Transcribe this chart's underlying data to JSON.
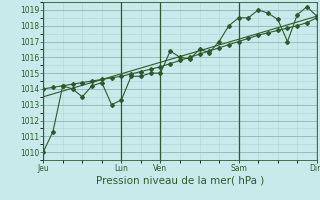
{
  "background_color": "#c8eaea",
  "grid_color_major": "#8ab8b8",
  "grid_color_minor": "#b0d4d4",
  "line_color": "#2d5a2d",
  "xlabel": "Pression niveau de la mer( hPa )",
  "ylim": [
    1009.5,
    1019.5
  ],
  "yticks": [
    1010,
    1011,
    1012,
    1013,
    1014,
    1015,
    1016,
    1017,
    1018,
    1019
  ],
  "day_labels": [
    "Jeu",
    "Lun",
    "Ven",
    "Sam",
    "Dim"
  ],
  "day_positions": [
    0,
    96,
    144,
    240,
    336
  ],
  "xlim": [
    0,
    336
  ],
  "series1_x": [
    0,
    12,
    24,
    36,
    48,
    60,
    72,
    84,
    96,
    108,
    120,
    132,
    144,
    156,
    168,
    180,
    192,
    204,
    216,
    228,
    240,
    252,
    264,
    276,
    288,
    300,
    312,
    324,
    336
  ],
  "series1_y": [
    1010.0,
    1011.3,
    1014.2,
    1014.0,
    1013.5,
    1014.2,
    1014.4,
    1013.0,
    1013.3,
    1014.8,
    1014.8,
    1015.0,
    1015.0,
    1016.4,
    1016.0,
    1015.9,
    1016.5,
    1016.3,
    1017.0,
    1018.0,
    1018.5,
    1018.5,
    1019.0,
    1018.8,
    1018.4,
    1017.0,
    1018.7,
    1019.2,
    1018.6
  ],
  "series2_x": [
    0,
    12,
    24,
    36,
    48,
    60,
    72,
    84,
    96,
    108,
    120,
    132,
    144,
    156,
    168,
    180,
    192,
    204,
    216,
    228,
    240,
    252,
    264,
    276,
    288,
    300,
    312,
    324,
    336
  ],
  "series2_y": [
    1014.0,
    1014.1,
    1014.2,
    1014.3,
    1014.4,
    1014.5,
    1014.6,
    1014.7,
    1014.8,
    1014.95,
    1015.1,
    1015.25,
    1015.4,
    1015.6,
    1015.8,
    1016.0,
    1016.2,
    1016.4,
    1016.6,
    1016.8,
    1017.0,
    1017.2,
    1017.4,
    1017.55,
    1017.7,
    1017.85,
    1018.0,
    1018.2,
    1018.5
  ],
  "trend_x": [
    0,
    336
  ],
  "trend_y": [
    1013.5,
    1018.6
  ],
  "marker": "D",
  "marker_size": 2.0,
  "line_width": 0.8,
  "tick_fontsize": 5.5,
  "xlabel_fontsize": 7.5
}
